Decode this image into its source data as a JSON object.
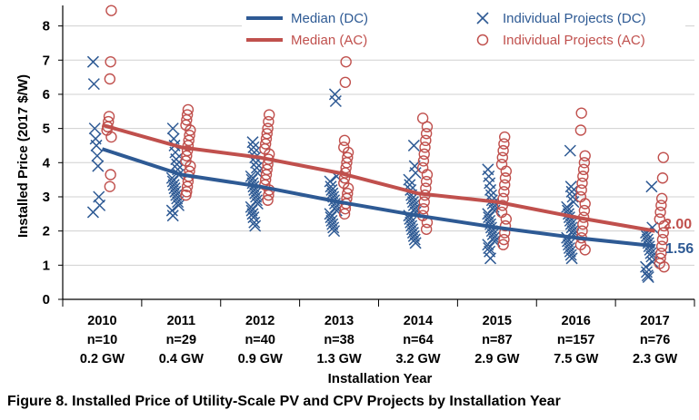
{
  "caption": "Figure 8. Installed Price of Utility-Scale PV and CPV Projects by Installation Year",
  "colors": {
    "dc": "#2E5A94",
    "ac": "#C0504D",
    "grid": "#d0d0d0",
    "axis": "#000000"
  },
  "chart_data": {
    "type": "scatter",
    "xlabel": "Installation Year",
    "ylabel": "Installed Price (2017 $/W)",
    "ylim": [
      0,
      8.6
    ],
    "yticks": [
      0,
      1,
      2,
      3,
      4,
      5,
      6,
      7,
      8
    ],
    "grid": "horizontal",
    "legend_placement": "top",
    "categories": [
      {
        "year": "2010",
        "n": "n=10",
        "gw": "0.2 GW"
      },
      {
        "year": "2011",
        "n": "n=29",
        "gw": "0.4 GW"
      },
      {
        "year": "2012",
        "n": "n=40",
        "gw": "0.9 GW"
      },
      {
        "year": "2013",
        "n": "n=38",
        "gw": "1.3 GW"
      },
      {
        "year": "2014",
        "n": "n=64",
        "gw": "3.2 GW"
      },
      {
        "year": "2015",
        "n": "n=87",
        "gw": "2.9 GW"
      },
      {
        "year": "2016",
        "n": "n=157",
        "gw": "7.5 GW"
      },
      {
        "year": "2017",
        "n": "n=76",
        "gw": "2.3 GW"
      }
    ],
    "series": [
      {
        "name": "Median (DC)",
        "kind": "line",
        "color": "#2E5A94",
        "values": [
          4.4,
          3.65,
          3.3,
          2.85,
          2.45,
          2.1,
          1.8,
          1.56
        ]
      },
      {
        "name": "Median (AC)",
        "kind": "line",
        "color": "#C0504D",
        "values": [
          5.1,
          4.45,
          4.15,
          3.7,
          3.1,
          2.85,
          2.4,
          2.0
        ]
      },
      {
        "name": "Individual Projects (DC)",
        "kind": "scatter",
        "marker": "x",
        "color": "#2E5A94",
        "points": [
          [
            0,
            6.95
          ],
          [
            0,
            6.3
          ],
          [
            0,
            5.0
          ],
          [
            0,
            4.7
          ],
          [
            0,
            4.5
          ],
          [
            0,
            4.2
          ],
          [
            0,
            3.9
          ],
          [
            0,
            3.0
          ],
          [
            0,
            2.75
          ],
          [
            0,
            2.55
          ],
          [
            1,
            5.0
          ],
          [
            1,
            4.7
          ],
          [
            1,
            4.5
          ],
          [
            1,
            4.3
          ],
          [
            1,
            4.1
          ],
          [
            1,
            3.95
          ],
          [
            1,
            3.8
          ],
          [
            1,
            3.65
          ],
          [
            1,
            3.55
          ],
          [
            1,
            3.45
          ],
          [
            1,
            3.35
          ],
          [
            1,
            3.25
          ],
          [
            1,
            3.15
          ],
          [
            1,
            3.05
          ],
          [
            1,
            2.95
          ],
          [
            1,
            2.85
          ],
          [
            1,
            2.75
          ],
          [
            1,
            2.6
          ],
          [
            1,
            2.45
          ],
          [
            2,
            4.6
          ],
          [
            2,
            4.45
          ],
          [
            2,
            4.3
          ],
          [
            2,
            4.15
          ],
          [
            2,
            4.0
          ],
          [
            2,
            3.85
          ],
          [
            2,
            3.7
          ],
          [
            2,
            3.6
          ],
          [
            2,
            3.5
          ],
          [
            2,
            3.4
          ],
          [
            2,
            3.3
          ],
          [
            2,
            3.2
          ],
          [
            2,
            3.1
          ],
          [
            2,
            3.0
          ],
          [
            2,
            2.9
          ],
          [
            2,
            2.8
          ],
          [
            2,
            2.7
          ],
          [
            2,
            2.6
          ],
          [
            2,
            2.5
          ],
          [
            2,
            2.4
          ],
          [
            2,
            2.25
          ],
          [
            2,
            2.15
          ],
          [
            3,
            6.0
          ],
          [
            3,
            5.8
          ],
          [
            3,
            3.6
          ],
          [
            3,
            3.45
          ],
          [
            3,
            3.3
          ],
          [
            3,
            3.2
          ],
          [
            3,
            3.1
          ],
          [
            3,
            3.0
          ],
          [
            3,
            2.9
          ],
          [
            3,
            2.8
          ],
          [
            3,
            2.7
          ],
          [
            3,
            2.6
          ],
          [
            3,
            2.5
          ],
          [
            3,
            2.4
          ],
          [
            3,
            2.3
          ],
          [
            3,
            2.2
          ],
          [
            3,
            2.1
          ],
          [
            3,
            2.0
          ],
          [
            4,
            4.5
          ],
          [
            4,
            3.9
          ],
          [
            4,
            3.7
          ],
          [
            4,
            3.5
          ],
          [
            4,
            3.35
          ],
          [
            4,
            3.2
          ],
          [
            4,
            3.05
          ],
          [
            4,
            2.95
          ],
          [
            4,
            2.85
          ],
          [
            4,
            2.75
          ],
          [
            4,
            2.65
          ],
          [
            4,
            2.55
          ],
          [
            4,
            2.45
          ],
          [
            4,
            2.35
          ],
          [
            4,
            2.25
          ],
          [
            4,
            2.15
          ],
          [
            4,
            2.05
          ],
          [
            4,
            1.95
          ],
          [
            4,
            1.85
          ],
          [
            4,
            1.75
          ],
          [
            4,
            1.65
          ],
          [
            5,
            3.8
          ],
          [
            5,
            3.6
          ],
          [
            5,
            3.4
          ],
          [
            5,
            3.2
          ],
          [
            5,
            3.05
          ],
          [
            5,
            2.9
          ],
          [
            5,
            2.8
          ],
          [
            5,
            2.7
          ],
          [
            5,
            2.6
          ],
          [
            5,
            2.5
          ],
          [
            5,
            2.4
          ],
          [
            5,
            2.3
          ],
          [
            5,
            2.2
          ],
          [
            5,
            2.1
          ],
          [
            5,
            2.0
          ],
          [
            5,
            1.9
          ],
          [
            5,
            1.8
          ],
          [
            5,
            1.7
          ],
          [
            5,
            1.6
          ],
          [
            5,
            1.5
          ],
          [
            5,
            1.4
          ],
          [
            5,
            1.2
          ],
          [
            6,
            4.35
          ],
          [
            6,
            3.3
          ],
          [
            6,
            3.15
          ],
          [
            6,
            3.0
          ],
          [
            6,
            2.85
          ],
          [
            6,
            2.7
          ],
          [
            6,
            2.6
          ],
          [
            6,
            2.5
          ],
          [
            6,
            2.4
          ],
          [
            6,
            2.3
          ],
          [
            6,
            2.2
          ],
          [
            6,
            2.1
          ],
          [
            6,
            2.0
          ],
          [
            6,
            1.9
          ],
          [
            6,
            1.8
          ],
          [
            6,
            1.7
          ],
          [
            6,
            1.6
          ],
          [
            6,
            1.5
          ],
          [
            6,
            1.4
          ],
          [
            6,
            1.3
          ],
          [
            6,
            1.2
          ],
          [
            7,
            3.3
          ],
          [
            7,
            2.1
          ],
          [
            7,
            1.95
          ],
          [
            7,
            1.85
          ],
          [
            7,
            1.75
          ],
          [
            7,
            1.65
          ],
          [
            7,
            1.55
          ],
          [
            7,
            1.45
          ],
          [
            7,
            1.35
          ],
          [
            7,
            1.25
          ],
          [
            7,
            1.1
          ],
          [
            7,
            0.95
          ],
          [
            7,
            0.8
          ],
          [
            7,
            0.7
          ],
          [
            7,
            0.65
          ]
        ]
      },
      {
        "name": "Individual Projects (AC)",
        "kind": "scatter",
        "marker": "o",
        "color": "#C0504D",
        "points": [
          [
            0,
            8.45
          ],
          [
            0,
            6.95
          ],
          [
            0,
            6.45
          ],
          [
            0,
            5.35
          ],
          [
            0,
            5.2
          ],
          [
            0,
            5.05
          ],
          [
            0,
            4.95
          ],
          [
            0,
            4.75
          ],
          [
            0,
            3.65
          ],
          [
            0,
            3.3
          ],
          [
            1,
            5.55
          ],
          [
            1,
            5.4
          ],
          [
            1,
            5.25
          ],
          [
            1,
            5.1
          ],
          [
            1,
            4.95
          ],
          [
            1,
            4.8
          ],
          [
            1,
            4.65
          ],
          [
            1,
            4.5
          ],
          [
            1,
            4.35
          ],
          [
            1,
            4.2
          ],
          [
            1,
            4.05
          ],
          [
            1,
            3.9
          ],
          [
            1,
            3.75
          ],
          [
            1,
            3.6
          ],
          [
            1,
            3.45
          ],
          [
            1,
            3.3
          ],
          [
            1,
            3.15
          ],
          [
            1,
            3.05
          ],
          [
            2,
            5.4
          ],
          [
            2,
            5.2
          ],
          [
            2,
            5.0
          ],
          [
            2,
            4.85
          ],
          [
            2,
            4.7
          ],
          [
            2,
            4.55
          ],
          [
            2,
            4.4
          ],
          [
            2,
            4.25
          ],
          [
            2,
            4.1
          ],
          [
            2,
            3.95
          ],
          [
            2,
            3.8
          ],
          [
            2,
            3.65
          ],
          [
            2,
            3.5
          ],
          [
            2,
            3.35
          ],
          [
            2,
            3.2
          ],
          [
            2,
            3.05
          ],
          [
            2,
            2.9
          ],
          [
            3,
            6.95
          ],
          [
            3,
            6.35
          ],
          [
            3,
            4.65
          ],
          [
            3,
            4.45
          ],
          [
            3,
            4.3
          ],
          [
            3,
            4.15
          ],
          [
            3,
            4.0
          ],
          [
            3,
            3.85
          ],
          [
            3,
            3.7
          ],
          [
            3,
            3.55
          ],
          [
            3,
            3.4
          ],
          [
            3,
            3.25
          ],
          [
            3,
            3.1
          ],
          [
            3,
            2.95
          ],
          [
            3,
            2.8
          ],
          [
            3,
            2.65
          ],
          [
            3,
            2.5
          ],
          [
            4,
            5.3
          ],
          [
            4,
            5.05
          ],
          [
            4,
            4.85
          ],
          [
            4,
            4.65
          ],
          [
            4,
            4.45
          ],
          [
            4,
            4.25
          ],
          [
            4,
            4.05
          ],
          [
            4,
            3.85
          ],
          [
            4,
            3.65
          ],
          [
            4,
            3.45
          ],
          [
            4,
            3.25
          ],
          [
            4,
            3.05
          ],
          [
            4,
            2.85
          ],
          [
            4,
            2.65
          ],
          [
            4,
            2.45
          ],
          [
            4,
            2.25
          ],
          [
            4,
            2.05
          ],
          [
            5,
            4.75
          ],
          [
            5,
            4.55
          ],
          [
            5,
            4.35
          ],
          [
            5,
            4.15
          ],
          [
            5,
            3.95
          ],
          [
            5,
            3.75
          ],
          [
            5,
            3.55
          ],
          [
            5,
            3.35
          ],
          [
            5,
            3.15
          ],
          [
            5,
            2.95
          ],
          [
            5,
            2.75
          ],
          [
            5,
            2.55
          ],
          [
            5,
            2.35
          ],
          [
            5,
            2.15
          ],
          [
            5,
            1.95
          ],
          [
            5,
            1.75
          ],
          [
            5,
            1.6
          ],
          [
            6,
            5.45
          ],
          [
            6,
            4.95
          ],
          [
            6,
            4.2
          ],
          [
            6,
            4.0
          ],
          [
            6,
            3.8
          ],
          [
            6,
            3.6
          ],
          [
            6,
            3.4
          ],
          [
            6,
            3.2
          ],
          [
            6,
            3.0
          ],
          [
            6,
            2.8
          ],
          [
            6,
            2.6
          ],
          [
            6,
            2.4
          ],
          [
            6,
            2.2
          ],
          [
            6,
            2.0
          ],
          [
            6,
            1.8
          ],
          [
            6,
            1.6
          ],
          [
            6,
            1.45
          ],
          [
            7,
            4.15
          ],
          [
            7,
            3.55
          ],
          [
            7,
            2.95
          ],
          [
            7,
            2.75
          ],
          [
            7,
            2.55
          ],
          [
            7,
            2.35
          ],
          [
            7,
            2.15
          ],
          [
            7,
            1.95
          ],
          [
            7,
            1.75
          ],
          [
            7,
            1.55
          ],
          [
            7,
            1.35
          ],
          [
            7,
            1.2
          ],
          [
            7,
            1.05
          ],
          [
            7,
            0.95
          ]
        ]
      }
    ],
    "end_labels": {
      "ac": "2.00",
      "dc": "1.56"
    }
  }
}
